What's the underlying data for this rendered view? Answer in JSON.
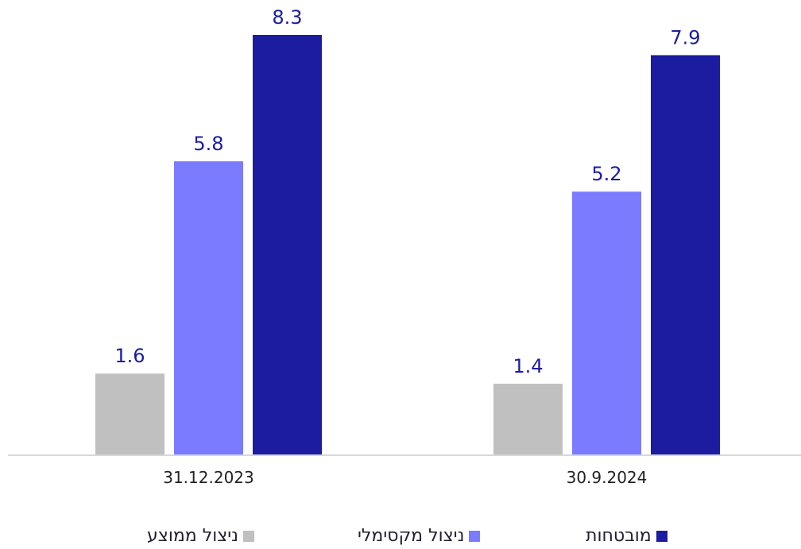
{
  "chart_data": {
    "type": "bar",
    "title": "",
    "xlabel": "",
    "ylabel": "",
    "ylim": [
      0,
      8.3
    ],
    "grid": false,
    "legend_position": "bottom",
    "categories": [
      "31.12.2023",
      "30.9.2024"
    ],
    "series": [
      {
        "name": "ניצול ממוצע",
        "color": "#c0c0c0",
        "values": [
          1.6,
          1.4
        ]
      },
      {
        "name": "ניצול מקסימלי",
        "color": "#7b7bff",
        "values": [
          5.8,
          5.2
        ]
      },
      {
        "name": "מובטחות",
        "color": "#1c1ca0",
        "values": [
          8.3,
          7.9
        ]
      }
    ]
  },
  "colors": {
    "value_label": "#1c1ca0",
    "axis": "#c8c8d0",
    "tick_label": "#222222"
  }
}
